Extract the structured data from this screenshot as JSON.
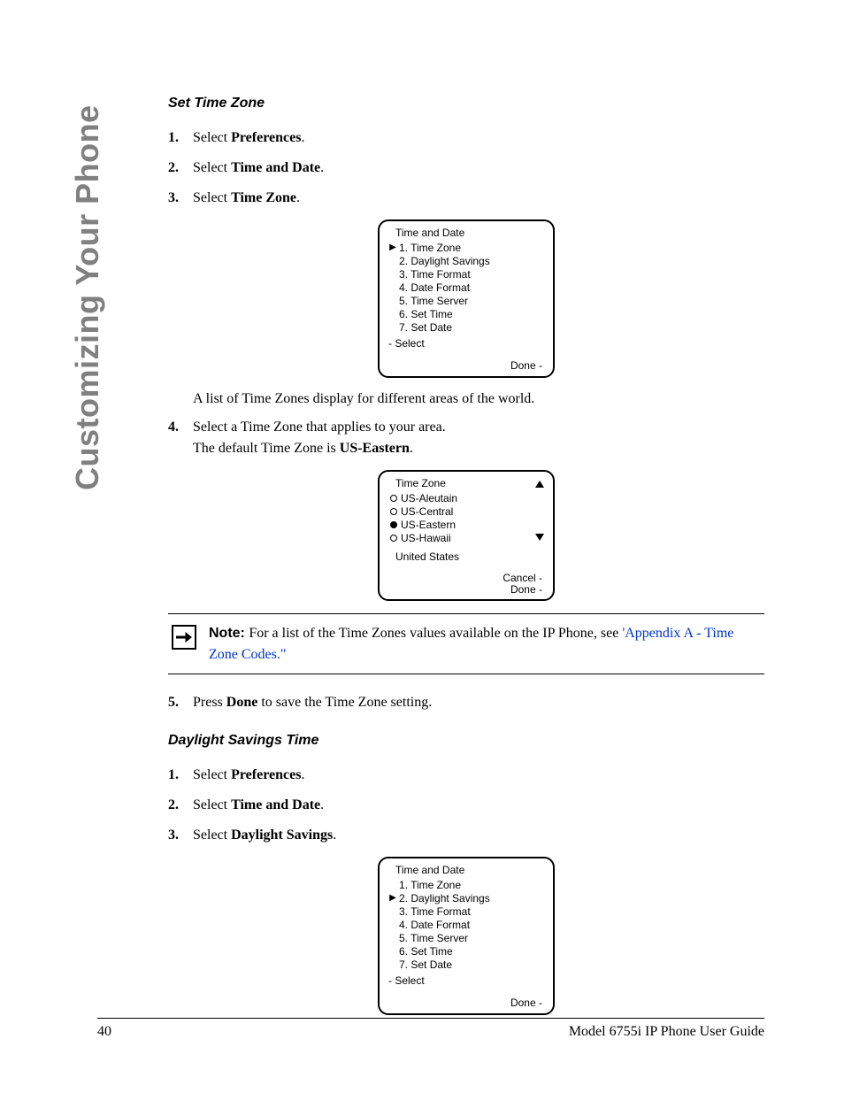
{
  "sideHeading": "Customizing Your Phone",
  "section1": {
    "title": "Set Time Zone",
    "steps": {
      "s1_pre": "Select ",
      "s1_bold": "Preferences",
      "s1_post": ".",
      "s2_pre": "Select ",
      "s2_bold": "Time and Date",
      "s2_post": ".",
      "s3_pre": "Select ",
      "s3_bold": "Time Zone",
      "s3_post": ".",
      "s4_line1": "Select a Time Zone that applies to your area.",
      "s4_line2_pre": "The default Time Zone is ",
      "s4_line2_bold": "US-Eastern",
      "s4_line2_post": ".",
      "s5_pre": "Press ",
      "s5_bold": "Done",
      "s5_post": " to save the Time Zone setting."
    },
    "afterScreen1": "A list of Time Zones display for different areas of the world."
  },
  "screen1": {
    "title": "Time and Date",
    "items": [
      "1. Time Zone",
      "2. Daylight Savings",
      "3. Time Format",
      "4. Date Format",
      "5. Time Server",
      "6. Set Time",
      "7. Set Date"
    ],
    "selectedIndex": 0,
    "select": "- Select",
    "done": "Done -"
  },
  "screen2": {
    "title": "Time Zone",
    "options": [
      {
        "label": "US-Aleutain",
        "filled": false
      },
      {
        "label": "US-Central",
        "filled": false
      },
      {
        "label": "US-Eastern",
        "filled": true
      },
      {
        "label": "US-Hawaii",
        "filled": false
      }
    ],
    "sub": "United States",
    "cancel": "Cancel -",
    "done": "Done -"
  },
  "note": {
    "label": "Note: ",
    "text_pre": "For a list of the Time Zones values available on the IP Phone, see ",
    "link": "'Appendix A - Time Zone Codes.\""
  },
  "section2": {
    "title": "Daylight Savings Time",
    "steps": {
      "s1_pre": "Select ",
      "s1_bold": "Preferences",
      "s1_post": ".",
      "s2_pre": "Select ",
      "s2_bold": "Time and Date",
      "s2_post": ".",
      "s3_pre": "Select ",
      "s3_bold": "Daylight Savings",
      "s3_post": "."
    }
  },
  "screen3": {
    "title": "Time and Date",
    "items": [
      "1. Time Zone",
      "2. Daylight Savings",
      "3. Time Format",
      "4. Date Format",
      "5. Time Server",
      "6. Set Time",
      "7. Set Date"
    ],
    "selectedIndex": 1,
    "select": "- Select",
    "done": "Done -"
  },
  "footer": {
    "pageNum": "40",
    "guide": "Model 6755i IP Phone User Guide"
  },
  "nums": {
    "n1": "1.",
    "n2": "2.",
    "n3": "3.",
    "n4": "4.",
    "n5": "5."
  }
}
